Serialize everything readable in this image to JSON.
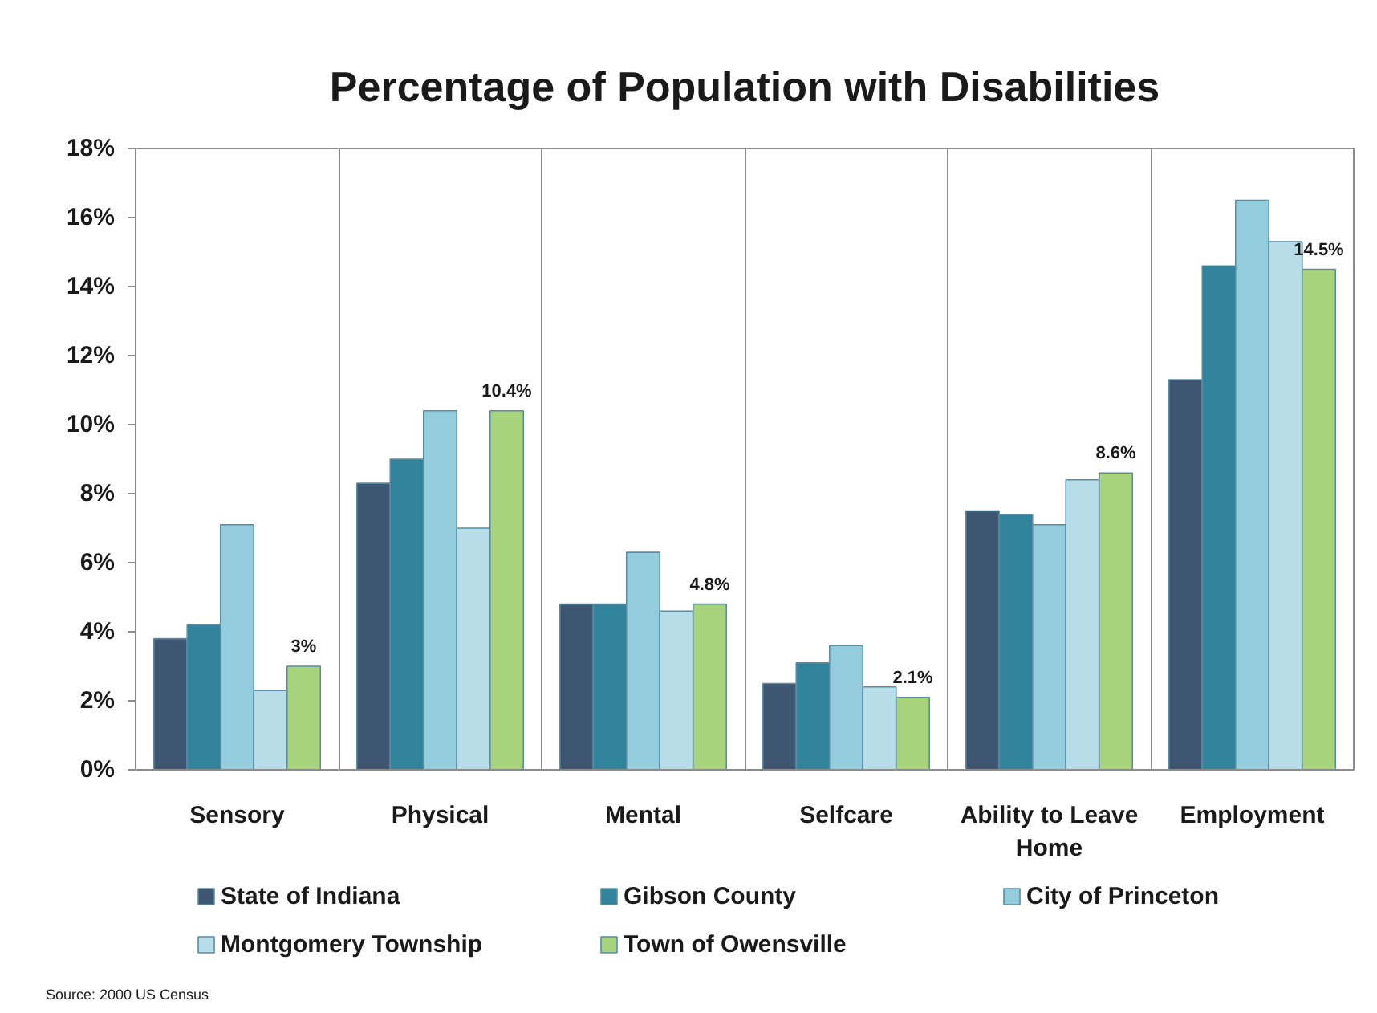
{
  "chart_data": {
    "type": "bar",
    "title": "Percentage of Population with Disabilities",
    "categories": [
      "Sensory",
      "Physical",
      "Mental",
      "Selfcare",
      "Ability to Leave Home",
      "Employment"
    ],
    "series": [
      {
        "name": "State of Indiana",
        "color": "#3f5673",
        "values": [
          3.8,
          8.3,
          4.8,
          2.5,
          7.5,
          11.3
        ]
      },
      {
        "name": "Gibson County",
        "color": "#31849b",
        "values": [
          4.2,
          9.0,
          4.8,
          3.1,
          7.4,
          14.6
        ]
      },
      {
        "name": "City of Princeton",
        "color": "#93cddd",
        "values": [
          7.1,
          10.4,
          6.3,
          3.6,
          7.1,
          16.5
        ]
      },
      {
        "name": "Montgomery Township",
        "color": "#b7dee8",
        "values": [
          2.3,
          7.0,
          4.6,
          2.4,
          8.4,
          15.3
        ]
      },
      {
        "name": "Town of Owensville",
        "color": "#a8d37d",
        "values": [
          3,
          10.4,
          4.8,
          2.1,
          8.6,
          14.5
        ],
        "value_labels": [
          "3%",
          "10.4%",
          "4.8%",
          "2.1%",
          "8.6%",
          "14.5%"
        ]
      }
    ],
    "ylim": [
      0,
      18
    ],
    "yticks": [
      {
        "value": 0,
        "label": "0%"
      },
      {
        "value": 2,
        "label": "2%"
      },
      {
        "value": 4,
        "label": "4%"
      },
      {
        "value": 6,
        "label": "6%"
      },
      {
        "value": 8,
        "label": "8%"
      },
      {
        "value": 10,
        "label": "10%"
      },
      {
        "value": 12,
        "label": "12%"
      },
      {
        "value": 14,
        "label": "14%"
      },
      {
        "value": 16,
        "label": "16%"
      },
      {
        "value": 18,
        "label": "18%"
      }
    ],
    "grid": "x",
    "legend": "bottom",
    "annotations": [
      "Source:  2000 US Census"
    ]
  }
}
